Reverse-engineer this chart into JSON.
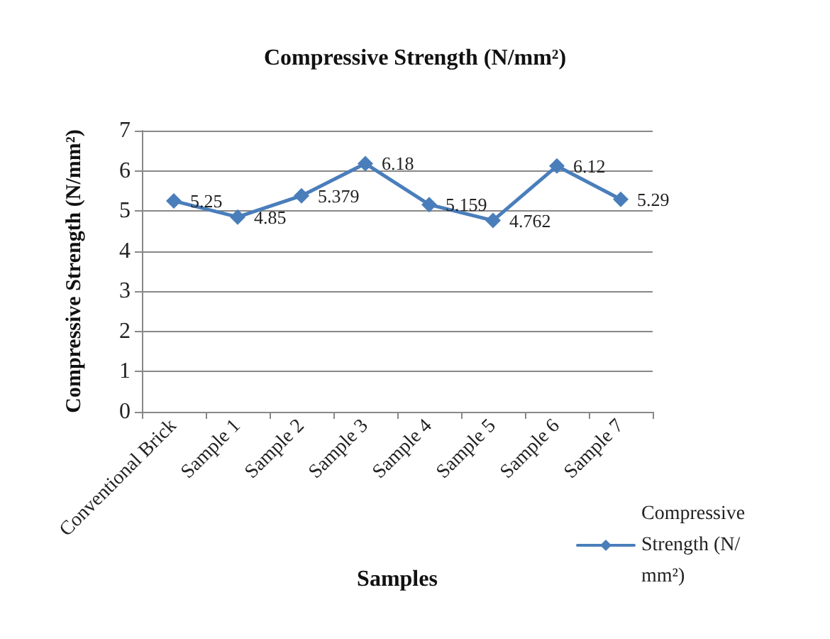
{
  "chart_data": {
    "type": "line",
    "title": "Compressive Strength (N/mm²)",
    "xlabel": "Samples",
    "ylabel": "Compressive Strength (N/mm²)",
    "categories": [
      "Conventional Brick",
      "Sample 1",
      "Sample 2",
      "Sample 3",
      "Sample 4",
      "Sample 5",
      "Sample 6",
      "Sample 7"
    ],
    "series": [
      {
        "name": "Compressive Strength (N/mm²)",
        "color": "#4a7ebb",
        "values": [
          5.25,
          4.85,
          5.379,
          6.18,
          5.159,
          4.762,
          6.12,
          5.29
        ]
      }
    ],
    "ylim": [
      0,
      7
    ],
    "yticks": [
      0,
      1,
      2,
      3,
      4,
      5,
      6,
      7
    ],
    "grid": "y",
    "legend": "bottom right",
    "marker": "diamond",
    "line_style": "solid",
    "data_labels": true
  }
}
